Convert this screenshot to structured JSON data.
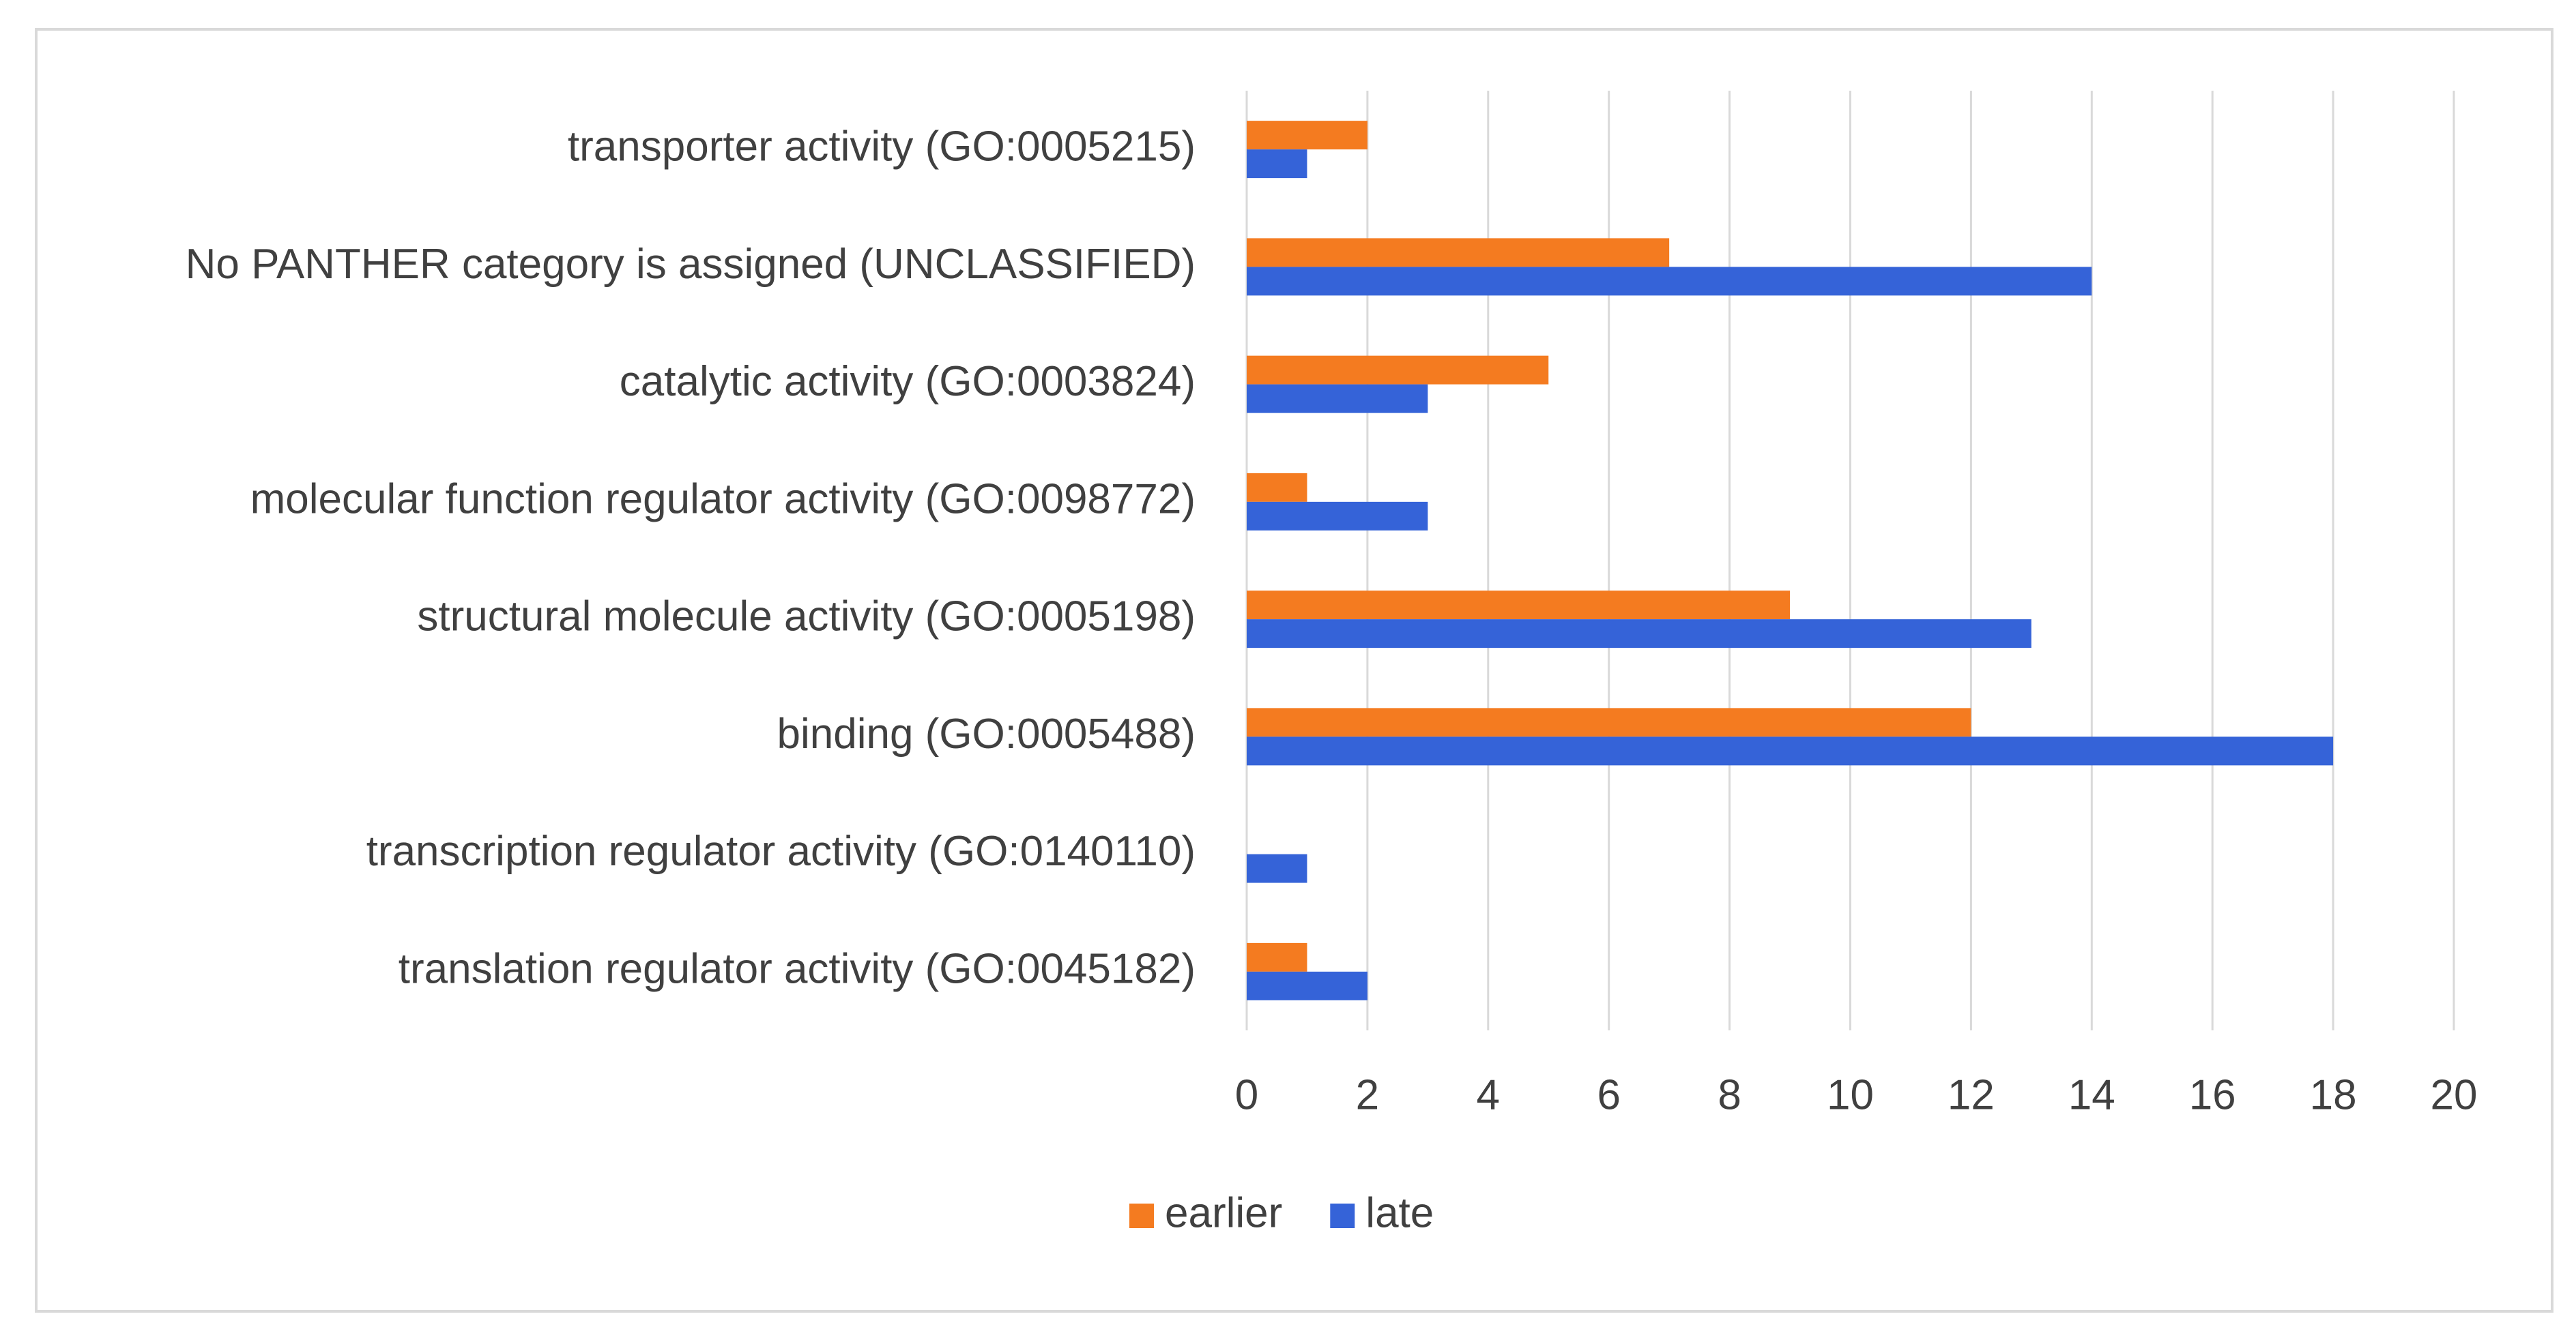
{
  "chart_data": {
    "type": "bar",
    "orientation": "horizontal",
    "categories": [
      "transporter activity (GO:0005215)",
      "No PANTHER category is assigned (UNCLASSIFIED)",
      "catalytic activity (GO:0003824)",
      "molecular function regulator activity (GO:0098772)",
      "structural molecule activity (GO:0005198)",
      "binding (GO:0005488)",
      "transcription regulator activity (GO:0140110)",
      "translation regulator activity (GO:0045182)"
    ],
    "series": [
      {
        "name": "earlier",
        "color": "#f47b20",
        "values": [
          2,
          7,
          5,
          1,
          9,
          12,
          null,
          1
        ]
      },
      {
        "name": "late",
        "color": "#3563d8",
        "values": [
          1,
          14,
          3,
          3,
          13,
          18,
          1,
          2
        ]
      }
    ],
    "xlim": [
      0,
      20
    ],
    "xticks": [
      0,
      2,
      4,
      6,
      8,
      10,
      12,
      14,
      16,
      18,
      20
    ],
    "grid": true,
    "legend": "bottom"
  }
}
